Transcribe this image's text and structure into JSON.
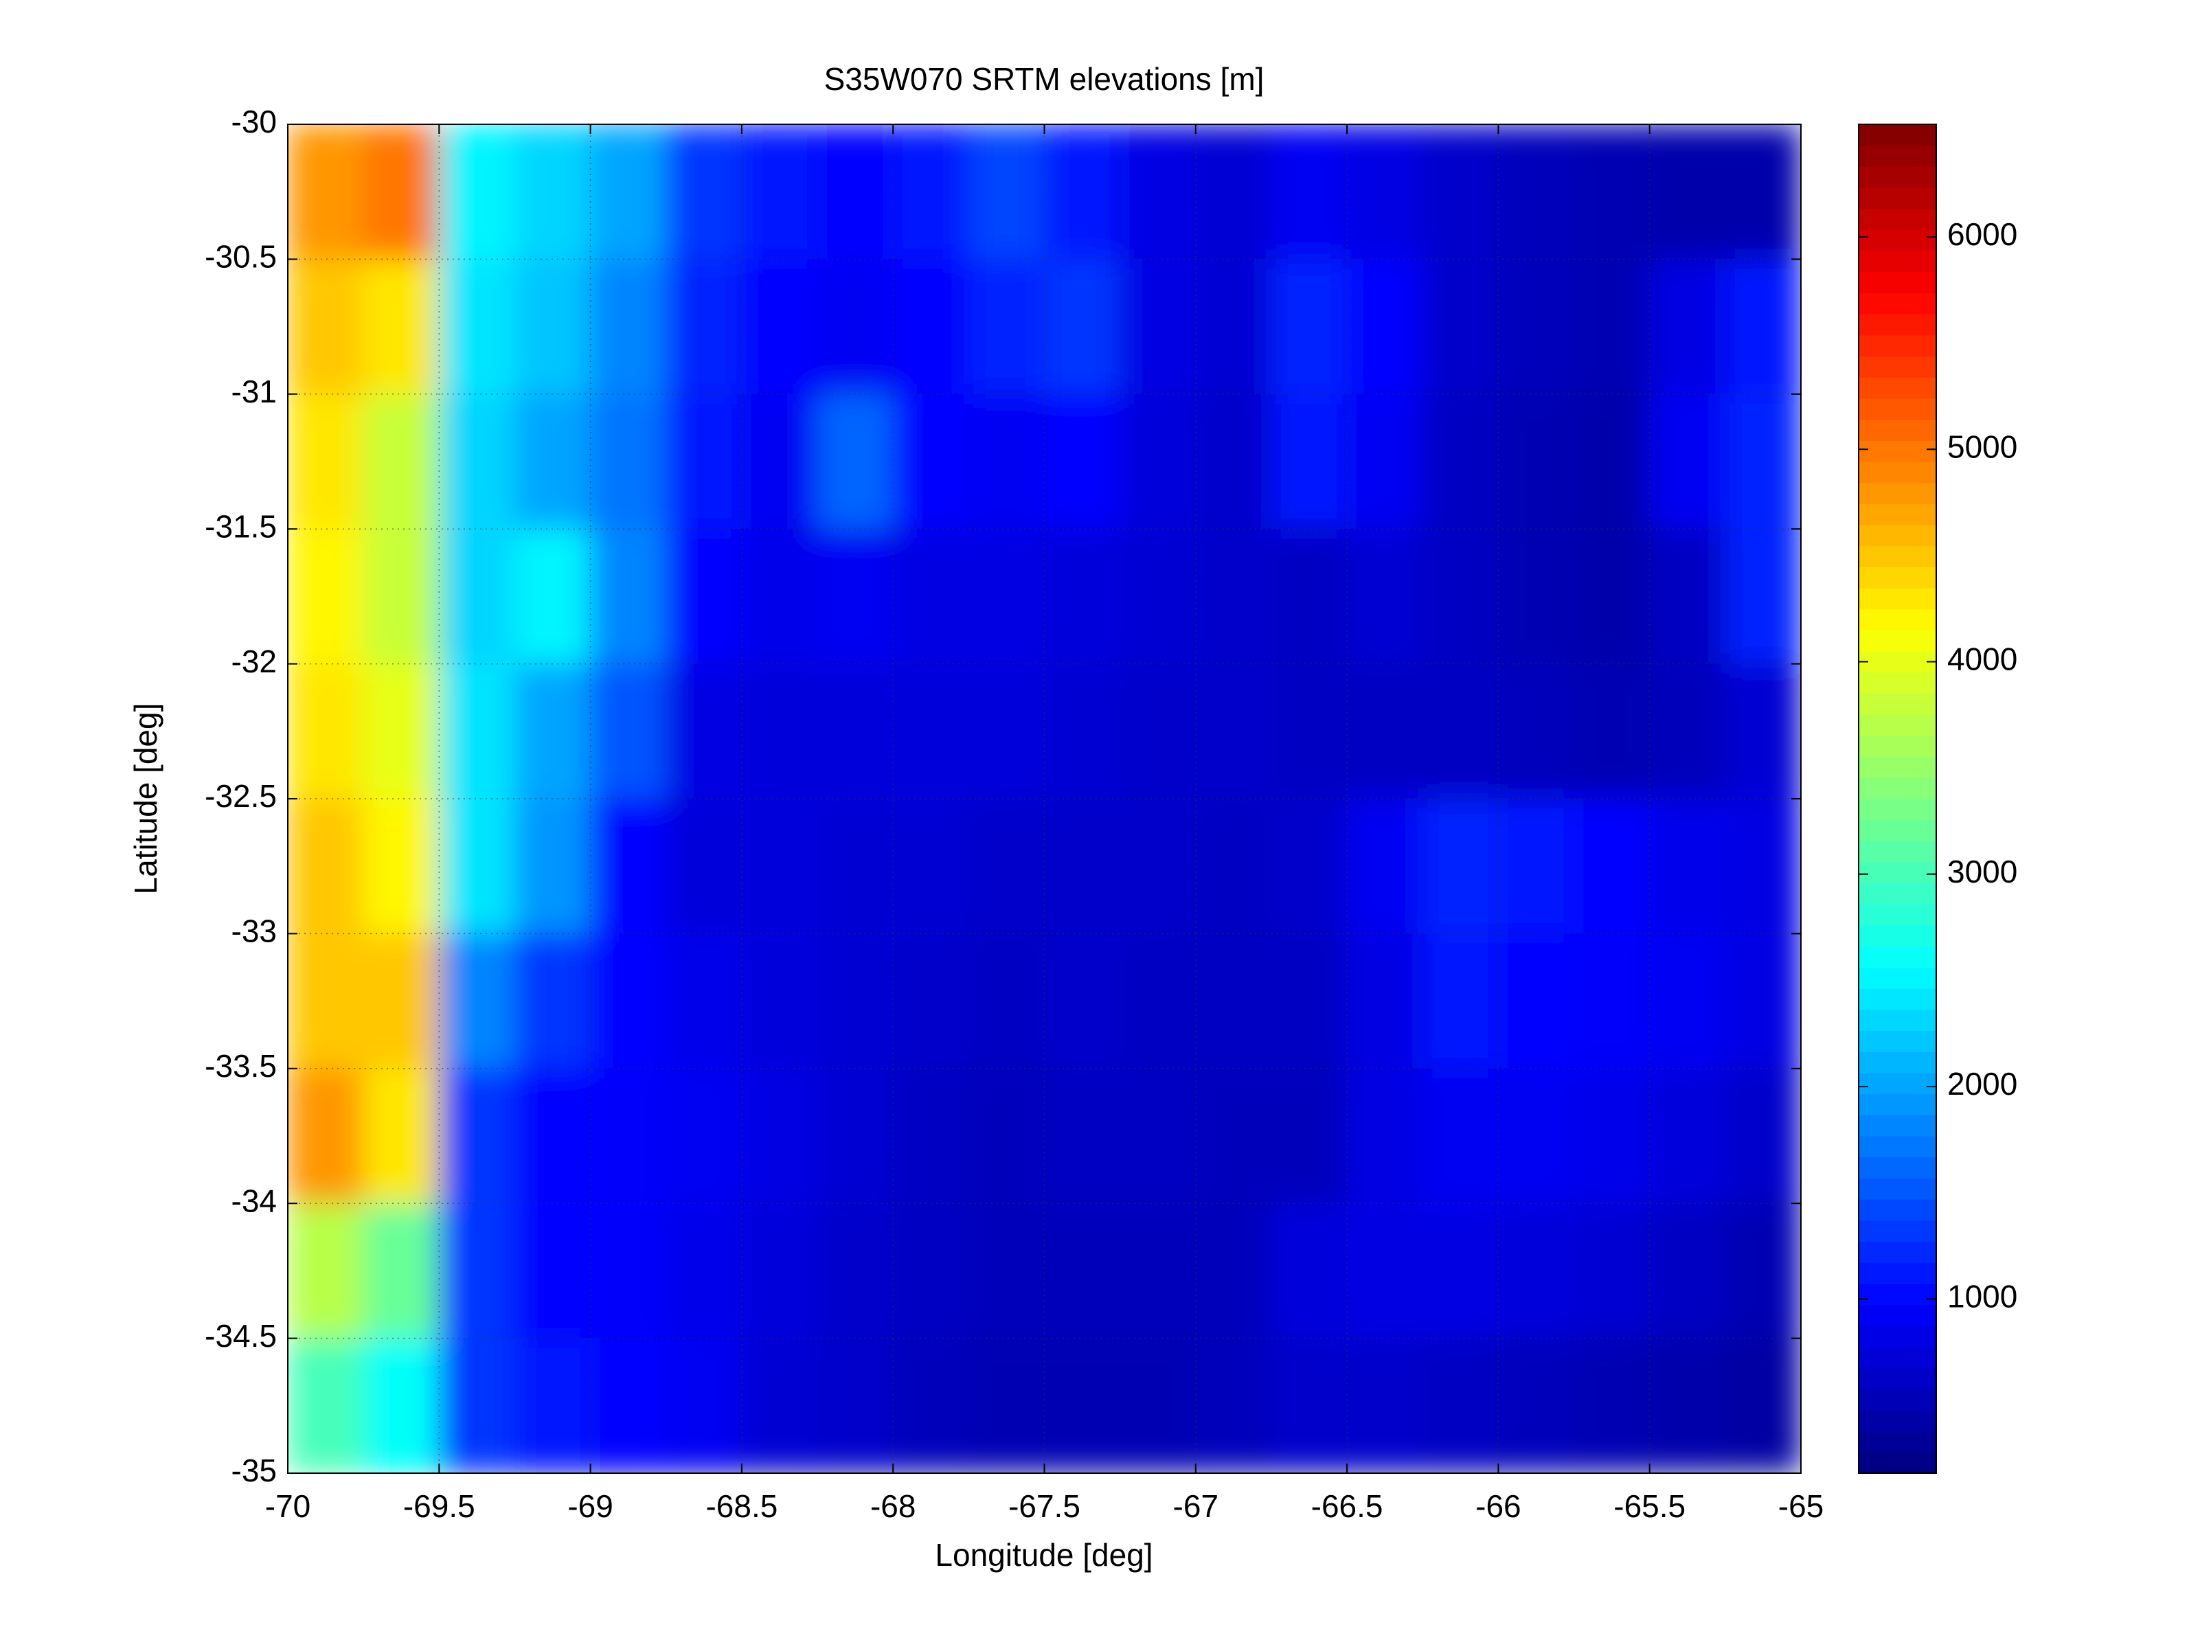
{
  "chart_data": {
    "type": "heatmap",
    "title": "S35W070 SRTM elevations [m]",
    "x_label": "Longitude [deg]",
    "y_label": "Latitude [deg]",
    "xlim": [
      -70,
      -65
    ],
    "ylim": [
      -35,
      -30
    ],
    "xticks": [
      -70,
      -69.5,
      -69,
      -68.5,
      -68,
      -67.5,
      -67,
      -66.5,
      -66,
      -65.5,
      -65
    ],
    "yticks": [
      -35,
      -34.5,
      -34,
      -33.5,
      -33,
      -32.5,
      -32,
      -31.5,
      -31,
      -30.5,
      -30
    ],
    "grid": true,
    "colormap": "jet",
    "clim": [
      180,
      6530
    ],
    "colorbar_ticks": [
      1000,
      2000,
      3000,
      4000,
      5000,
      6000
    ],
    "z": [
      [
        4800,
        5000,
        2500,
        2300,
        2000,
        1300,
        1100,
        1000,
        1100,
        1400,
        1100,
        800,
        700,
        900,
        800,
        650,
        550,
        500,
        450,
        450
      ],
      [
        4500,
        4300,
        2400,
        2200,
        1800,
        1200,
        1000,
        900,
        1000,
        1200,
        1300,
        800,
        700,
        1200,
        1000,
        650,
        550,
        500,
        800,
        1100
      ],
      [
        4300,
        3800,
        2300,
        2000,
        1700,
        1100,
        900,
        1600,
        1000,
        900,
        1000,
        750,
        650,
        1100,
        900,
        600,
        500,
        450,
        900,
        1200
      ],
      [
        4200,
        3800,
        2300,
        2500,
        1800,
        1000,
        850,
        900,
        800,
        800,
        750,
        700,
        650,
        600,
        700,
        600,
        500,
        450,
        600,
        1200
      ],
      [
        4300,
        4000,
        2400,
        2000,
        1500,
        800,
        750,
        750,
        750,
        750,
        700,
        650,
        650,
        600,
        600,
        600,
        550,
        500,
        550,
        700
      ],
      [
        4500,
        4200,
        2400,
        1900,
        1000,
        750,
        750,
        700,
        700,
        650,
        650,
        650,
        600,
        650,
        900,
        1200,
        1100,
        1000,
        850,
        800
      ],
      [
        4500,
        4500,
        1800,
        1300,
        1000,
        850,
        750,
        700,
        650,
        600,
        650,
        600,
        600,
        600,
        800,
        1100,
        1000,
        950,
        900,
        800
      ],
      [
        4800,
        4300,
        1300,
        1000,
        950,
        900,
        800,
        700,
        600,
        550,
        600,
        600,
        550,
        550,
        800,
        900,
        900,
        850,
        750,
        650
      ],
      [
        3700,
        3200,
        1300,
        1000,
        950,
        850,
        750,
        650,
        600,
        550,
        550,
        550,
        550,
        750,
        800,
        800,
        750,
        700,
        600,
        500
      ],
      [
        3000,
        2600,
        1300,
        1100,
        1000,
        900,
        700,
        650,
        550,
        500,
        500,
        500,
        550,
        650,
        650,
        600,
        550,
        500,
        450,
        400
      ]
    ]
  }
}
